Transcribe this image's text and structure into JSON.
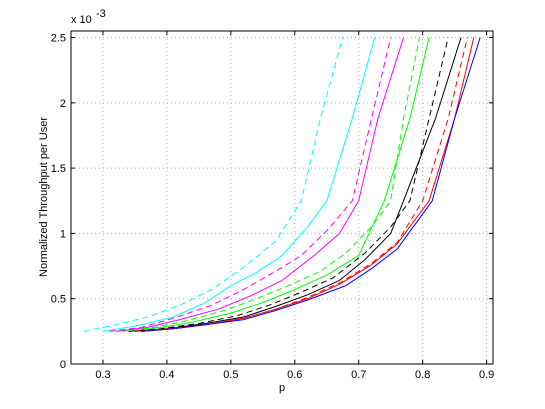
{
  "chart_data": {
    "type": "line",
    "xlabel": "p",
    "ylabel": "Normalized Throughput per User",
    "y_exponent_label": "x 10",
    "y_exponent_power": "-3",
    "xlim": [
      0.25,
      0.91
    ],
    "ylim": [
      0,
      2.55
    ],
    "xticks": [
      0.3,
      0.4,
      0.5,
      0.6,
      0.7,
      0.8,
      0.9
    ],
    "xtick_labels": [
      "0.3",
      "0.4",
      "0.5",
      "0.6",
      "0.7",
      "0.8",
      "0.9"
    ],
    "yticks": [
      0,
      0.5,
      1,
      1.5,
      2,
      2.5
    ],
    "ytick_labels": [
      "0",
      "0.5",
      "1",
      "1.5",
      "2",
      "2.5"
    ],
    "grid": true,
    "series": [
      {
        "color": "#00ffff",
        "dash": true,
        "points": [
          [
            0.27,
            0.25
          ],
          [
            0.32,
            0.3
          ],
          [
            0.37,
            0.36
          ],
          [
            0.42,
            0.45
          ],
          [
            0.47,
            0.57
          ],
          [
            0.52,
            0.74
          ],
          [
            0.57,
            0.94
          ],
          [
            0.61,
            1.25
          ],
          [
            0.64,
            1.88
          ],
          [
            0.675,
            2.5
          ]
        ]
      },
      {
        "color": "#00ffff",
        "dash": false,
        "points": [
          [
            0.3,
            0.25
          ],
          [
            0.35,
            0.29
          ],
          [
            0.41,
            0.36
          ],
          [
            0.46,
            0.47
          ],
          [
            0.5,
            0.6
          ],
          [
            0.54,
            0.7
          ],
          [
            0.58,
            0.83
          ],
          [
            0.62,
            1.05
          ],
          [
            0.65,
            1.25
          ],
          [
            0.69,
            1.88
          ],
          [
            0.725,
            2.5
          ]
        ]
      },
      {
        "color": "#ff00ff",
        "dash": true,
        "points": [
          [
            0.31,
            0.25
          ],
          [
            0.36,
            0.28
          ],
          [
            0.41,
            0.35
          ],
          [
            0.47,
            0.45
          ],
          [
            0.52,
            0.57
          ],
          [
            0.57,
            0.71
          ],
          [
            0.61,
            0.83
          ],
          [
            0.65,
            1.02
          ],
          [
            0.69,
            1.25
          ],
          [
            0.72,
            1.88
          ],
          [
            0.75,
            2.5
          ]
        ]
      },
      {
        "color": "#ff00ff",
        "dash": false,
        "points": [
          [
            0.32,
            0.25
          ],
          [
            0.37,
            0.28
          ],
          [
            0.42,
            0.34
          ],
          [
            0.48,
            0.42
          ],
          [
            0.53,
            0.52
          ],
          [
            0.58,
            0.64
          ],
          [
            0.63,
            0.83
          ],
          [
            0.67,
            1.0
          ],
          [
            0.7,
            1.25
          ],
          [
            0.73,
            1.88
          ],
          [
            0.77,
            2.5
          ]
        ]
      },
      {
        "color": "#00ff00",
        "dash": true,
        "points": [
          [
            0.33,
            0.25
          ],
          [
            0.38,
            0.28
          ],
          [
            0.43,
            0.33
          ],
          [
            0.49,
            0.41
          ],
          [
            0.54,
            0.5
          ],
          [
            0.59,
            0.6
          ],
          [
            0.64,
            0.71
          ],
          [
            0.68,
            0.85
          ],
          [
            0.72,
            1.05
          ],
          [
            0.75,
            1.25
          ],
          [
            0.77,
            1.88
          ],
          [
            0.795,
            2.5
          ]
        ]
      },
      {
        "color": "#00ff00",
        "dash": false,
        "points": [
          [
            0.34,
            0.25
          ],
          [
            0.39,
            0.28
          ],
          [
            0.44,
            0.32
          ],
          [
            0.5,
            0.39
          ],
          [
            0.55,
            0.47
          ],
          [
            0.6,
            0.57
          ],
          [
            0.65,
            0.68
          ],
          [
            0.7,
            0.83
          ],
          [
            0.74,
            1.25
          ],
          [
            0.78,
            1.88
          ],
          [
            0.81,
            2.5
          ]
        ]
      },
      {
        "color": "#000000",
        "dash": true,
        "points": [
          [
            0.34,
            0.25
          ],
          [
            0.39,
            0.27
          ],
          [
            0.45,
            0.31
          ],
          [
            0.51,
            0.37
          ],
          [
            0.56,
            0.45
          ],
          [
            0.61,
            0.55
          ],
          [
            0.66,
            0.66
          ],
          [
            0.71,
            0.85
          ],
          [
            0.75,
            1.05
          ],
          [
            0.78,
            1.25
          ],
          [
            0.81,
            1.88
          ],
          [
            0.84,
            2.5
          ]
        ]
      },
      {
        "color": "#000000",
        "dash": false,
        "points": [
          [
            0.35,
            0.25
          ],
          [
            0.4,
            0.27
          ],
          [
            0.46,
            0.31
          ],
          [
            0.52,
            0.36
          ],
          [
            0.57,
            0.44
          ],
          [
            0.62,
            0.53
          ],
          [
            0.67,
            0.64
          ],
          [
            0.71,
            0.8
          ],
          [
            0.75,
            1.0
          ],
          [
            0.77,
            1.25
          ],
          [
            0.82,
            1.88
          ],
          [
            0.86,
            2.5
          ]
        ]
      },
      {
        "color": "#ff0000",
        "dash": true,
        "points": [
          [
            0.35,
            0.25
          ],
          [
            0.4,
            0.27
          ],
          [
            0.46,
            0.3
          ],
          [
            0.52,
            0.35
          ],
          [
            0.57,
            0.42
          ],
          [
            0.62,
            0.51
          ],
          [
            0.67,
            0.62
          ],
          [
            0.72,
            0.77
          ],
          [
            0.76,
            0.93
          ],
          [
            0.8,
            1.25
          ],
          [
            0.84,
            1.88
          ],
          [
            0.87,
            2.5
          ]
        ]
      },
      {
        "color": "#ff0000",
        "dash": false,
        "points": [
          [
            0.36,
            0.25
          ],
          [
            0.41,
            0.27
          ],
          [
            0.46,
            0.3
          ],
          [
            0.52,
            0.35
          ],
          [
            0.57,
            0.42
          ],
          [
            0.62,
            0.5
          ],
          [
            0.67,
            0.61
          ],
          [
            0.72,
            0.76
          ],
          [
            0.76,
            0.92
          ],
          [
            0.81,
            1.25
          ],
          [
            0.85,
            1.88
          ],
          [
            0.88,
            2.5
          ]
        ]
      },
      {
        "color": "#0000ff",
        "dash": false,
        "points": [
          [
            0.36,
            0.25
          ],
          [
            0.41,
            0.27
          ],
          [
            0.46,
            0.3
          ],
          [
            0.52,
            0.34
          ],
          [
            0.57,
            0.41
          ],
          [
            0.62,
            0.49
          ],
          [
            0.68,
            0.6
          ],
          [
            0.72,
            0.73
          ],
          [
            0.76,
            0.88
          ],
          [
            0.815,
            1.25
          ],
          [
            0.85,
            1.88
          ],
          [
            0.89,
            2.5
          ]
        ]
      }
    ]
  }
}
